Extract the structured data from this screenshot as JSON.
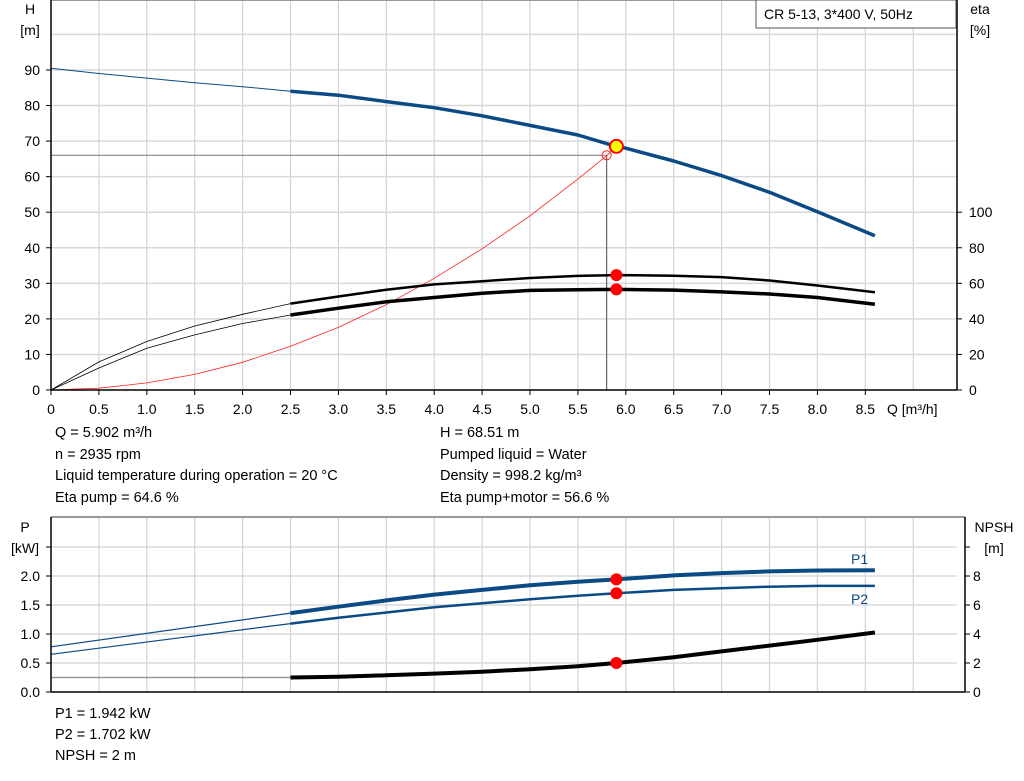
{
  "title_box": "CR 5-13, 3*400 V, 50Hz",
  "colors": {
    "head": "#0b4a85",
    "eta": "#000000",
    "system": "#ff2020",
    "power": "#0b4a85",
    "npsh": "#000000",
    "duty_point": "#ff0000",
    "op_point_fill": "#ffff00"
  },
  "chart_data": [
    {
      "type": "line",
      "xlabel": "Q [m³/h]",
      "x_ticks": [
        "0",
        "0.5",
        "1.0",
        "1.5",
        "2.0",
        "2.5",
        "3.0",
        "3.5",
        "4.0",
        "4.5",
        "5.0",
        "5.5",
        "6.0",
        "6.5",
        "7.0",
        "7.5",
        "8.0",
        "8.5"
      ],
      "xlim": [
        0,
        9.5
      ],
      "ylabel_left": [
        "H",
        "[m]"
      ],
      "ylim_left": [
        0,
        100
      ],
      "y_ticks_left": [
        "0",
        "10",
        "20",
        "30",
        "40",
        "50",
        "60",
        "70",
        "80",
        "90"
      ],
      "ylabel_right": [
        "eta",
        "[%]"
      ],
      "ylim_right": [
        0,
        200
      ],
      "y_ticks_right": [
        "0",
        "20",
        "40",
        "60",
        "80",
        "100"
      ],
      "grid": true,
      "series": [
        {
          "key": "head",
          "axis": "left",
          "thin_until": 2.5,
          "x": [
            0,
            0.5,
            1,
            1.5,
            2,
            2.5,
            3,
            3.5,
            4,
            4.5,
            5,
            5.5,
            5.9,
            6,
            6.5,
            7,
            7.5,
            8,
            8.6
          ],
          "y": [
            90.5,
            89,
            87.7,
            86.4,
            85.3,
            84,
            82.9,
            81.1,
            79.4,
            77.1,
            74.4,
            71.7,
            68.51,
            68,
            64.4,
            60.3,
            55.6,
            50.1,
            43.4
          ]
        },
        {
          "key": "eta_pump",
          "axis": "right",
          "thin_until": 2.5,
          "x": [
            0,
            0.5,
            1,
            1.5,
            2,
            2.5,
            3,
            3.5,
            4,
            4.5,
            5,
            5.5,
            5.9,
            6.5,
            7,
            7.5,
            8,
            8.6
          ],
          "y": [
            0,
            15.8,
            27.3,
            36,
            42.6,
            48.6,
            52.6,
            56.4,
            59.4,
            61.2,
            63,
            64.2,
            64.6,
            64.3,
            63.5,
            61.6,
            58.8,
            55
          ]
        },
        {
          "key": "eta_pump_motor",
          "axis": "right",
          "thin_until": 2.5,
          "x": [
            0,
            0.5,
            1,
            1.5,
            2,
            2.5,
            3,
            3.5,
            4,
            4.5,
            5,
            5.5,
            5.9,
            6.5,
            7,
            7.5,
            8,
            8.6
          ],
          "y": [
            0,
            12.4,
            23.5,
            31,
            37.4,
            42.2,
            46,
            49.6,
            52,
            54.4,
            56,
            56.4,
            56.6,
            56.2,
            55.2,
            54,
            52,
            48.2
          ]
        },
        {
          "key": "system",
          "axis": "left",
          "thin_until": 99,
          "x": [
            0,
            0.5,
            1,
            1.5,
            2,
            2.5,
            3,
            3.5,
            4,
            4.5,
            5,
            5.5,
            5.8,
            5.9
          ],
          "y": [
            0,
            0.5,
            2,
            4.4,
            7.8,
            12.3,
            17.6,
            24,
            31.4,
            39.7,
            49,
            59.3,
            65.9,
            68.5
          ]
        }
      ],
      "duty_point": {
        "q": 5.8,
        "h": 66
      },
      "operating_point": {
        "q": 5.902,
        "h": 68.51,
        "eta_pump": 64.6,
        "eta_pump_motor": 56.6
      }
    },
    {
      "type": "line",
      "ylabel_left": [
        "P",
        "[kW]"
      ],
      "ylim_left": [
        0,
        2.5
      ],
      "y_ticks_left": [
        "0.0",
        "0.5",
        "1.0",
        "1.5",
        "2.0",
        ""
      ],
      "ylabel_right": [
        "NPSH",
        "[m]"
      ],
      "ylim_right": [
        0,
        10
      ],
      "y_ticks_right": [
        "0",
        "2",
        "4",
        "6",
        "8",
        ""
      ],
      "xlim": [
        0,
        9.5
      ],
      "grid": true,
      "series": [
        {
          "key": "P1",
          "name": "P1",
          "axis": "left",
          "thin_until": 2.5,
          "x": [
            0,
            2.5,
            3,
            3.5,
            4,
            4.5,
            5,
            5.5,
            5.9,
            6.5,
            7,
            7.5,
            8,
            8.6
          ],
          "y": [
            0.78,
            1.36,
            1.47,
            1.58,
            1.68,
            1.76,
            1.84,
            1.9,
            1.942,
            2.01,
            2.05,
            2.08,
            2.095,
            2.1
          ]
        },
        {
          "key": "P2",
          "name": "P2",
          "axis": "left",
          "thin_until": 2.5,
          "x": [
            0,
            2.5,
            3,
            3.5,
            4,
            4.5,
            5,
            5.5,
            5.9,
            6.5,
            7,
            7.5,
            8,
            8.6
          ],
          "y": [
            0.65,
            1.18,
            1.28,
            1.37,
            1.46,
            1.53,
            1.6,
            1.66,
            1.702,
            1.76,
            1.79,
            1.815,
            1.83,
            1.83
          ]
        },
        {
          "key": "NPSH",
          "axis": "right",
          "thin_until": 2.5,
          "x": [
            0,
            2.5,
            3,
            3.5,
            4,
            4.5,
            5,
            5.5,
            5.9,
            6.5,
            7,
            7.5,
            8,
            8.6
          ],
          "y": [
            1.0,
            1.0,
            1.05,
            1.15,
            1.27,
            1.4,
            1.57,
            1.78,
            2.0,
            2.4,
            2.8,
            3.2,
            3.6,
            4.1
          ]
        }
      ],
      "operating_point": {
        "q": 5.902,
        "p1": 1.942,
        "p2": 1.702,
        "npsh": 2
      }
    }
  ],
  "info_top_left": [
    "Q = 5.902 m³/h",
    "n = 2935 rpm",
    "Liquid temperature during operation = 20 °C",
    "Eta pump = 64.6 %"
  ],
  "info_top_right": [
    "H = 68.51 m",
    "Pumped liquid = Water",
    "Density = 998.2 kg/m³",
    "Eta pump+motor = 56.6 %"
  ],
  "info_bottom": [
    "P1 = 1.942 kW",
    "P2 = 1.702 kW",
    "NPSH = 2 m"
  ]
}
